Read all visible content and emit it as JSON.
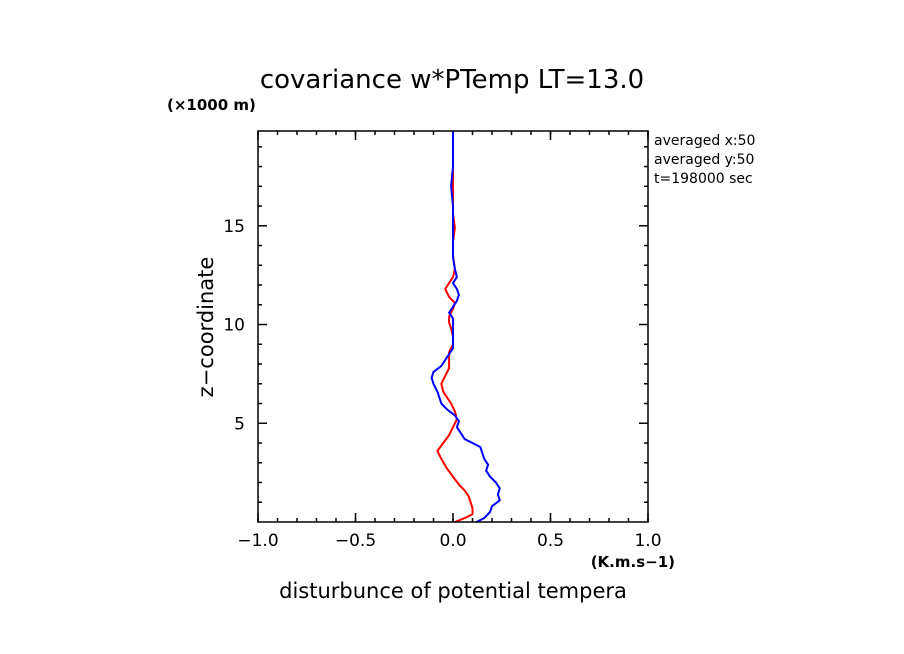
{
  "chart_data": {
    "type": "line",
    "title": "covariance w*PTemp LT=13.0",
    "y_unit": "(×1000 m)",
    "x_unit": "(K.m.s−1)",
    "xlabel": "disturbunce of potential tempera",
    "ylabel": "z−coordinate",
    "xlim": [
      -1.0,
      1.0
    ],
    "ylim": [
      0,
      19.8
    ],
    "x_ticks": [
      -1.0,
      -0.5,
      0.0,
      0.5,
      1.0
    ],
    "x_tick_labels": [
      "−1.0",
      "−0.5",
      "0.0",
      "0.5",
      "1.0"
    ],
    "y_ticks": [
      5,
      10,
      15
    ],
    "y_tick_labels": [
      "5",
      "10",
      "15"
    ],
    "annotations": [
      "averaged  x:50",
      "averaged  y:50",
      "t=198000 sec"
    ],
    "grid": false,
    "series": [
      {
        "color": "#ff0000",
        "points": [
          [
            0.01,
            0.0
          ],
          [
            0.06,
            0.2
          ],
          [
            0.1,
            0.4
          ],
          [
            0.1,
            0.7
          ],
          [
            0.09,
            1.0
          ],
          [
            0.08,
            1.3
          ],
          [
            0.06,
            1.6
          ],
          [
            0.03,
            1.9
          ],
          [
            0.0,
            2.3
          ],
          [
            -0.03,
            2.7
          ],
          [
            -0.06,
            3.2
          ],
          [
            -0.08,
            3.6
          ],
          [
            -0.05,
            4.0
          ],
          [
            -0.02,
            4.4
          ],
          [
            0.0,
            4.8
          ],
          [
            0.02,
            5.2
          ],
          [
            0.01,
            5.6
          ],
          [
            -0.01,
            6.0
          ],
          [
            -0.03,
            6.3
          ],
          [
            -0.05,
            6.6
          ],
          [
            -0.06,
            7.0
          ],
          [
            -0.04,
            7.4
          ],
          [
            -0.02,
            7.8
          ],
          [
            -0.02,
            8.2
          ],
          [
            -0.02,
            8.6
          ],
          [
            0.0,
            9.0
          ],
          [
            0.0,
            9.4
          ],
          [
            -0.01,
            9.8
          ],
          [
            -0.02,
            10.1
          ],
          [
            -0.02,
            10.4
          ],
          [
            0.0,
            10.8
          ],
          [
            0.01,
            11.1
          ],
          [
            -0.02,
            11.4
          ],
          [
            -0.04,
            11.8
          ],
          [
            -0.02,
            12.1
          ],
          [
            0.0,
            12.4
          ],
          [
            0.01,
            12.8
          ],
          [
            0.0,
            13.5
          ],
          [
            0.0,
            14.2
          ],
          [
            0.01,
            14.9
          ],
          [
            0.0,
            15.6
          ],
          [
            0.0,
            16.4
          ],
          [
            0.0,
            17.2
          ],
          [
            0.0,
            18.0
          ],
          [
            0.0,
            18.8
          ],
          [
            0.0,
            19.8
          ]
        ]
      },
      {
        "color": "#0000ff",
        "points": [
          [
            0.12,
            0.0
          ],
          [
            0.16,
            0.2
          ],
          [
            0.19,
            0.5
          ],
          [
            0.2,
            0.8
          ],
          [
            0.24,
            1.1
          ],
          [
            0.23,
            1.4
          ],
          [
            0.24,
            1.7
          ],
          [
            0.22,
            2.0
          ],
          [
            0.19,
            2.3
          ],
          [
            0.17,
            2.6
          ],
          [
            0.18,
            2.9
          ],
          [
            0.16,
            3.2
          ],
          [
            0.15,
            3.5
          ],
          [
            0.14,
            3.8
          ],
          [
            0.1,
            4.0
          ],
          [
            0.06,
            4.2
          ],
          [
            0.04,
            4.5
          ],
          [
            0.02,
            4.8
          ],
          [
            0.03,
            5.1
          ],
          [
            0.01,
            5.4
          ],
          [
            -0.03,
            5.7
          ],
          [
            -0.06,
            6.0
          ],
          [
            -0.07,
            6.3
          ],
          [
            -0.08,
            6.6
          ],
          [
            -0.1,
            7.0
          ],
          [
            -0.11,
            7.3
          ],
          [
            -0.1,
            7.6
          ],
          [
            -0.06,
            7.9
          ],
          [
            -0.04,
            8.2
          ],
          [
            -0.02,
            8.5
          ],
          [
            0.0,
            8.8
          ],
          [
            0.0,
            9.1
          ],
          [
            0.0,
            9.4
          ],
          [
            0.0,
            9.7
          ],
          [
            0.0,
            10.0
          ],
          [
            0.0,
            10.3
          ],
          [
            -0.02,
            10.6
          ],
          [
            0.0,
            10.9
          ],
          [
            0.02,
            11.2
          ],
          [
            0.03,
            11.5
          ],
          [
            0.02,
            11.8
          ],
          [
            0.0,
            12.1
          ],
          [
            0.02,
            12.4
          ],
          [
            0.01,
            12.8
          ],
          [
            0.0,
            13.4
          ],
          [
            0.0,
            14.0
          ],
          [
            0.0,
            14.6
          ],
          [
            0.0,
            15.2
          ],
          [
            0.0,
            16.0
          ],
          [
            -0.01,
            17.0
          ],
          [
            0.0,
            18.0
          ],
          [
            0.0,
            19.0
          ],
          [
            0.0,
            19.8
          ]
        ]
      }
    ]
  }
}
